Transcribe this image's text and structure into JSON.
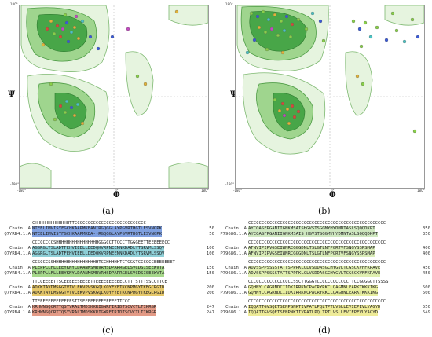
{
  "panels": {
    "a": {
      "caption": "(a)",
      "ylabel": "Ψ",
      "xlabel": "Φ",
      "tick_min": "-180°",
      "tick_max": "180°",
      "tick_zero": "0°"
    },
    "b": {
      "caption": "(b)",
      "ylabel": "Ψ",
      "xlabel": "Φ",
      "tick_min": "-180°",
      "tick_max": "180°",
      "tick_zero": "0°"
    },
    "c": {
      "caption": "(c)",
      "blocks": [
        {
          "ss": "CHHHHHHHHHHHHHTTCCCCCCCCCCCCCCCCCCCCCCCCCCC",
          "a_label": "Chain: A",
          "a_seq": "NTEELIMVISYFGCHKAAPMKEANIRGQGGLAYPGVRTHGTLESVNGPK",
          "a_num": "50",
          "b_label": "Q7YRB4.1.A",
          "b_seq": "NTEELIMVISYFGCHKAAPMKEA--RGQGGLAYPGVRTHGTLESVNGPK",
          "b_num": "50",
          "color": "#7fa0e0"
        },
        {
          "ss": "CCCCCCCCSHHHHHHHHHHHHHHHHGGGCCTTCCCTTGGGEETTEEEEEECC",
          "a_label": "Chain: A",
          "a_seq": "AGSRGLTSLADTFEHVIEELLDEDQKVRPNEENNKDADLYTSRVMLSSQV",
          "a_num": "100",
          "b_label": "Q7YRB4.1.A",
          "b_seq": "AGSRGLTSLADTFEHVIEELLDEDQKVRPNEENNKDADLYTSRVMLSSQV",
          "b_num": "100",
          "color": "#8fd0d8"
        },
        {
          "ss": "CCSCCCSSHHHHHHHHHHHHHHHHHTCCHHHHHTCTGGGTCCCCCCEEEEEEET",
          "a_label": "Chain: A",
          "a_seq": "PLEPPLLFLLEEYKNYLDAANMSMRVRHSDPARRGELSVCDSISEEWVTA",
          "a_num": "150",
          "b_label": "Q7YRB4.1.A",
          "b_seq": "PLEPPLLFLLEEYKNYLDAANMSMRVRHSDPARRGELSVCDSISEEWVTA",
          "b_num": "150",
          "color": "#a6d88a"
        },
        {
          "ss": "TTCCEEEETTSCEEEEESEEEETTEEEEEEEEEECCTTTSTTTSSCCTTCE",
          "a_label": "Chain: A",
          "a_seq": "ADKKTAVDMSGGTVTVLEKVPVSKGQLKQYFYETKCNPMGYTKEGCRGID",
          "a_num": "200",
          "b_label": "Q7YRB4.1.A",
          "b_seq": "ADKKTAVDMSGGTVTVLEKVPVSKGQLKQYFYETKCNPMGYTKEGCRGID",
          "b_num": "200",
          "color": "#e6c86a"
        },
        {
          "ss": "TTEEEEEEEEEEEEESTTSEEEEEEEEEEEEETTCCC",
          "a_label": "Chain: A",
          "a_seq": "KRHWNSQCRTTQSYVRALTMDSKKRIGWRFIRIDTSCVCTLTIKRGR",
          "a_num": "247",
          "b_label": "Q7YRB4.1.A",
          "b_seq": "KRHWNSQCRTTQSYVRALTMDSKKRIGWRFIRIDTSCVCTLTIKRGR",
          "b_num": "247",
          "color": "#e39a86"
        }
      ]
    },
    "d": {
      "caption": "(d)",
      "blocks": [
        {
          "ss": "CCCCCCCCCCCCCCCCCCCCCCCCCCCCCCCCCCCCCCCCCCCCCCCCCCCC",
          "a_label": "Chain: A",
          "a_seq": "AYCQASFPGANIIGNKMSAISHGVSTSGGMYHYDMNTASLSQQQDKPT",
          "a_num": "350",
          "b_label": "P79686.1.A",
          "b_seq": "AYCQASFPGANIIGNKMSAIS HGVSTSGGMYHYDMNTASLSQQQDKPT",
          "b_num": "350",
          "color": "#cfe8c0"
        },
        {
          "ss": "CCCCCCCCCCCCCCCCCCCCCCCCCCCCCCCCCCCCCCCCCCCCCCCCCCCC",
          "a_label": "Chain: A",
          "a_seq": "AFNVIPIPVGSEIWNRCGGGDNLTSLGTLNFPGRTVFSNGYSSPSMAP",
          "a_num": "400",
          "b_label": "P79686.1.A",
          "b_seq": "AFNVIPIPVGSEIWNRCGGGDNLTSLGTLNFPGRTVFSNGYSSPSMAP",
          "b_num": "400",
          "color": "#d9ecb8"
        },
        {
          "ss": "CCCCCCCCCCCCCCCCCCCCCCCCCCCCCCCCCCCCCCCCCCCCCCCCCCCC",
          "a_label": "Chain: A",
          "a_seq": "ADVSSPPSSSSTATTSPPPKLCLVSDDASGCHYGVLTCGSCKVFFKRAVE",
          "a_num": "450",
          "b_label": "P79686.1.A",
          "b_seq": "ADVSSPPSSSSTATTSPPPKLCLVSDDASGCHYGVLTCGSCKVFFKRAVE",
          "b_num": "450",
          "color": "#e0efb0"
        },
        {
          "ss": "CCCCCCCCCCCCCCCCCSSCTTGGGTCCCCCCCCCCCCTTCCGGGGGTTSSSS",
          "a_label": "Chain: A",
          "a_seq": "GQHNYLCAGRNDCIIDKIRRKNCPACRYRKCLQAGMNLEARKTKKKIKG",
          "a_num": "500",
          "b_label": "P79686.1.A",
          "b_seq": "GQHNYLCAGRNDCIIDKIRRKNCPACRYRKCLQAGMNLEARKTKKKIKG",
          "b_num": "500",
          "color": "#e8efa0"
        },
        {
          "ss": "CCCCCCCCCCCCCCCCCCCCCCCCCCCCCCCCCCCCCCCCCCCCCCCCCCCC",
          "a_label": "Chain: A",
          "a_seq": "IQQATTGVSQETSENPGNKTIVPATLPQLTPTLVSLLEVIEPEVLYAGYD",
          "a_num": "550",
          "b_label": "P79686.1.A",
          "b_seq": "IQQATTGVSQETSENPNKTIVPATLPQLTPTLVSLLEVIEPEVLYAGYD",
          "b_num": "549",
          "color": "#eeeb98"
        }
      ]
    }
  }
}
